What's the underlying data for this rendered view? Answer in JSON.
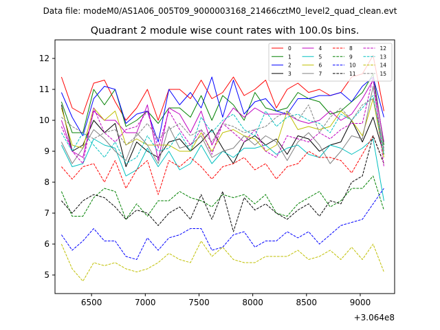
{
  "data_file_label": "Data file: modeM0/AS1A06_005T09_9000003168_21466cztM0_level2_quad_clean.evt",
  "chart_data": {
    "type": "line",
    "title": "Quadrant 2 module wise count rates with 100.0s bins.",
    "xlabel": "",
    "ylabel": "",
    "x_offset_label": "+3.064e8",
    "xlim": [
      6160,
      9320
    ],
    "ylim": [
      4.4,
      12.6
    ],
    "xticks": [
      6500,
      7000,
      7500,
      8000,
      8500,
      9000
    ],
    "yticks": [
      5,
      6,
      7,
      8,
      9,
      10,
      11,
      12
    ],
    "legend_position": "top-right",
    "legend_columns": 4,
    "x": [
      6220,
      6320,
      6420,
      6520,
      6620,
      6720,
      6820,
      6920,
      7020,
      7120,
      7220,
      7320,
      7420,
      7520,
      7620,
      7720,
      7820,
      7920,
      8020,
      8120,
      8220,
      8320,
      8420,
      8520,
      8620,
      8720,
      8820,
      8920,
      9020,
      9120,
      9220
    ],
    "series": [
      {
        "name": "0",
        "color": "#ff0000",
        "dash": false,
        "values": [
          11.4,
          10.4,
          10.2,
          11.2,
          11.3,
          10.6,
          10.0,
          10.4,
          11.0,
          10.0,
          11.0,
          11.0,
          10.7,
          11.3,
          10.7,
          10.9,
          11.4,
          10.8,
          11.0,
          11.3,
          10.4,
          11.0,
          11.2,
          10.9,
          11.0,
          10.8,
          10.9,
          11.4,
          11.5,
          12.1,
          10.3
        ]
      },
      {
        "name": "1",
        "color": "#008000",
        "dash": false,
        "values": [
          10.6,
          9.6,
          9.6,
          11.0,
          10.5,
          11.0,
          9.8,
          10.0,
          10.3,
          9.9,
          10.4,
          10.4,
          10.1,
          10.8,
          10.0,
          10.8,
          10.5,
          10.0,
          10.9,
          10.4,
          10.3,
          10.4,
          10.9,
          10.7,
          10.6,
          10.2,
          10.3,
          10.6,
          10.9,
          11.5,
          9.2
        ]
      },
      {
        "name": "2",
        "color": "#0000ff",
        "dash": false,
        "values": [
          10.9,
          10.1,
          9.5,
          10.7,
          11.1,
          11.0,
          9.9,
          10.2,
          10.3,
          9.3,
          11.0,
          10.5,
          10.9,
          10.4,
          11.4,
          10.1,
          11.3,
          10.2,
          10.6,
          10.7,
          10.3,
          10.2,
          10.7,
          10.7,
          10.8,
          10.8,
          10.9,
          10.6,
          11.1,
          11.4,
          10.1
        ]
      },
      {
        "name": "3",
        "color": "#000000",
        "dash": false,
        "values": [
          10.5,
          9.0,
          9.2,
          10.0,
          9.6,
          9.9,
          8.5,
          9.3,
          9.0,
          8.8,
          9.3,
          9.4,
          9.0,
          9.3,
          9.7,
          9.1,
          8.6,
          9.3,
          9.5,
          9.2,
          9.4,
          8.9,
          9.5,
          9.4,
          9.0,
          9.2,
          9.3,
          10.0,
          9.3,
          10.1,
          8.9
        ]
      },
      {
        "name": "4",
        "color": "#bf00bf",
        "dash": false,
        "values": [
          10.0,
          9.0,
          8.8,
          10.3,
          10.0,
          10.0,
          9.6,
          9.6,
          10.5,
          8.7,
          10.4,
          10.2,
          9.6,
          10.3,
          9.2,
          9.9,
          10.4,
          10.1,
          10.4,
          10.2,
          10.2,
          10.2,
          10.0,
          9.9,
          10.0,
          10.3,
          10.0,
          10.2,
          10.7,
          11.3,
          9.3
        ]
      },
      {
        "name": "5",
        "color": "#00bfbf",
        "dash": false,
        "values": [
          9.2,
          8.5,
          8.6,
          9.4,
          9.2,
          9.1,
          8.2,
          8.4,
          9.1,
          8.5,
          9.0,
          8.4,
          8.6,
          9.2,
          8.6,
          9.0,
          8.8,
          9.1,
          9.1,
          9.2,
          8.9,
          9.1,
          9.2,
          8.9,
          8.8,
          9.2,
          9.1,
          8.9,
          9.1,
          9.4,
          7.4
        ]
      },
      {
        "name": "6",
        "color": "#bfbf00",
        "dash": false,
        "values": [
          10.4,
          9.2,
          9.1,
          10.4,
          10.0,
          10.3,
          9.2,
          9.4,
          9.2,
          9.2,
          9.2,
          9.0,
          9.0,
          9.6,
          9.0,
          9.6,
          9.7,
          9.5,
          9.4,
          9.0,
          9.2,
          10.3,
          9.7,
          9.8,
          9.7,
          9.8,
          10.3,
          10.0,
          9.5,
          10.7,
          8.8
        ]
      },
      {
        "name": "7",
        "color": "#808080",
        "dash": false,
        "values": [
          9.3,
          8.6,
          9.1,
          9.7,
          9.4,
          9.0,
          8.7,
          9.6,
          9.2,
          8.6,
          9.8,
          9.1,
          9.2,
          9.5,
          8.8,
          9.0,
          9.1,
          9.5,
          9.2,
          9.5,
          9.3,
          8.7,
          9.3,
          9.6,
          9.2,
          8.6,
          9.0,
          9.5,
          9.4,
          11.1,
          9.0
        ]
      },
      {
        "name": "8",
        "color": "#ff0000",
        "dash": true,
        "values": [
          8.5,
          8.1,
          8.5,
          8.6,
          8.0,
          8.7,
          7.8,
          8.4,
          8.7,
          7.6,
          8.7,
          8.5,
          8.8,
          8.5,
          8.1,
          8.5,
          8.6,
          8.8,
          8.4,
          8.6,
          8.1,
          8.5,
          8.6,
          9.0,
          8.8,
          8.8,
          8.7,
          8.3,
          8.9,
          9.5,
          8.6
        ]
      },
      {
        "name": "9",
        "color": "#008000",
        "dash": true,
        "values": [
          7.7,
          6.9,
          6.9,
          7.5,
          7.8,
          7.7,
          6.8,
          7.3,
          6.9,
          7.4,
          7.4,
          7.7,
          7.5,
          7.4,
          7.2,
          7.6,
          7.5,
          7.6,
          7.3,
          7.6,
          7.0,
          6.9,
          7.3,
          7.5,
          7.7,
          7.2,
          7.4,
          7.8,
          7.8,
          8.2,
          7.1
        ]
      },
      {
        "name": "10",
        "color": "#0000ff",
        "dash": true,
        "values": [
          6.3,
          5.8,
          6.1,
          6.5,
          6.1,
          6.1,
          5.6,
          5.5,
          6.2,
          5.8,
          6.2,
          6.3,
          6.5,
          6.5,
          5.8,
          5.9,
          6.3,
          6.4,
          5.9,
          6.1,
          6.1,
          6.4,
          6.2,
          6.4,
          6.0,
          6.3,
          6.6,
          6.7,
          6.8,
          7.3,
          7.8
        ]
      },
      {
        "name": "11",
        "color": "#000000",
        "dash": true,
        "values": [
          7.4,
          7.0,
          7.4,
          7.6,
          7.5,
          7.2,
          6.8,
          7.1,
          7.0,
          6.6,
          7.0,
          7.2,
          6.8,
          7.6,
          6.8,
          7.7,
          6.4,
          7.5,
          7.1,
          7.3,
          7.0,
          6.8,
          7.1,
          7.3,
          6.9,
          7.4,
          7.3,
          8.0,
          8.2,
          9.5,
          8.6
        ]
      },
      {
        "name": "12",
        "color": "#bf00bf",
        "dash": true,
        "values": [
          9.8,
          9.0,
          8.6,
          10.4,
          9.6,
          9.3,
          9.7,
          9.8,
          10.3,
          9.1,
          10.3,
          9.7,
          9.2,
          9.7,
          8.9,
          9.9,
          9.6,
          9.3,
          9.7,
          9.0,
          8.8,
          9.5,
          9.4,
          9.3,
          9.6,
          9.4,
          9.7,
          9.9,
          9.9,
          11.4,
          8.5
        ]
      },
      {
        "name": "13",
        "color": "#00bfbf",
        "dash": true,
        "values": [
          9.6,
          9.0,
          9.6,
          9.2,
          8.8,
          9.3,
          8.6,
          8.8,
          9.5,
          9.0,
          9.1,
          9.6,
          9.0,
          10.1,
          9.6,
          10.0,
          10.2,
          9.7,
          9.5,
          10.3,
          9.8,
          10.1,
          10.2,
          10.0,
          9.9,
          9.6,
          10.2,
          10.0,
          10.4,
          10.8,
          8.9
        ]
      },
      {
        "name": "14",
        "color": "#bfbf00",
        "dash": true,
        "values": [
          6.0,
          5.2,
          4.8,
          5.4,
          5.3,
          5.4,
          5.2,
          5.1,
          5.2,
          5.4,
          5.7,
          5.5,
          5.4,
          6.1,
          5.6,
          5.9,
          5.5,
          5.4,
          5.4,
          5.6,
          5.6,
          5.6,
          5.8,
          5.5,
          5.6,
          5.8,
          5.5,
          5.9,
          5.5,
          6.0,
          5.1
        ]
      },
      {
        "name": "15",
        "color": "#808080",
        "dash": true,
        "values": [
          10.1,
          9.8,
          9.6,
          9.4,
          9.6,
          9.7,
          9.2,
          9.5,
          9.9,
          9.4,
          9.7,
          9.9,
          9.5,
          9.7,
          9.3,
          9.9,
          9.8,
          9.6,
          9.7,
          9.8,
          10.1,
          10.3,
          10.0,
          10.5,
          9.6,
          10.1,
          10.4,
          10.0,
          10.5,
          10.7,
          9.1
        ]
      }
    ]
  }
}
